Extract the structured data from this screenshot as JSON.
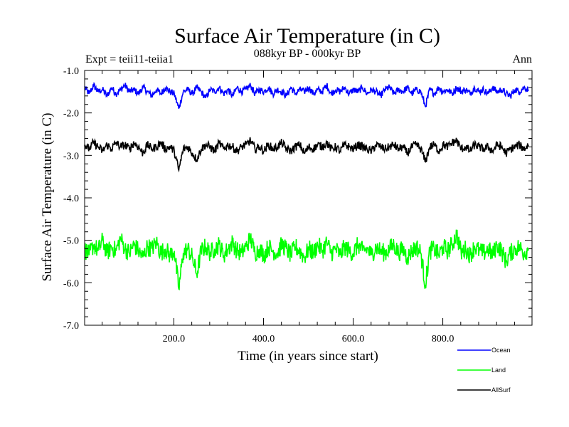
{
  "chart_data": {
    "type": "line",
    "title": "Surface Air Temperature (in C)",
    "subtitle": "088kyr BP - 000kyr BP",
    "experiment": "Expt = teii11-teiia1",
    "period": "Ann",
    "xlabel": "Time (in years since start)",
    "ylabel": "Surface Air Temperature (in C)",
    "xlim": [
      1,
      999
    ],
    "ylim": [
      -7.0,
      -1.0
    ],
    "xticks": [
      200,
      400,
      600,
      800
    ],
    "xtick_labels": [
      "200.0",
      "400.0",
      "600.0",
      "800.0"
    ],
    "yticks": [
      -1,
      -2,
      -3,
      -4,
      -5,
      -6,
      -7
    ],
    "ytick_labels": [
      "-1.0",
      "-2.0",
      "-3.0",
      "-4.0",
      "-5.0",
      "-6.0",
      "-7.0"
    ],
    "grid": false,
    "legend_position": "bottom-right, below plot",
    "series": [
      {
        "name": "Ocean",
        "color": "#0000ff",
        "x_step": 10,
        "x_start": 1,
        "values": [
          -1.4,
          -1.55,
          -1.35,
          -1.5,
          -1.45,
          -1.6,
          -1.4,
          -1.55,
          -1.45,
          -1.35,
          -1.5,
          -1.45,
          -1.55,
          -1.4,
          -1.5,
          -1.6,
          -1.45,
          -1.55,
          -1.4,
          -1.5,
          -1.55,
          -1.9,
          -1.5,
          -1.45,
          -1.55,
          -1.4,
          -1.5,
          -1.65,
          -1.45,
          -1.5,
          -1.4,
          -1.55,
          -1.45,
          -1.6,
          -1.4,
          -1.5,
          -1.45,
          -1.35,
          -1.55,
          -1.45,
          -1.5,
          -1.4,
          -1.55,
          -1.45,
          -1.5,
          -1.6,
          -1.4,
          -1.55,
          -1.45,
          -1.5,
          -1.4,
          -1.55,
          -1.45,
          -1.5,
          -1.35,
          -1.55,
          -1.45,
          -1.5,
          -1.4,
          -1.55,
          -1.45,
          -1.5,
          -1.4,
          -1.55,
          -1.45,
          -1.5,
          -1.6,
          -1.45,
          -1.4,
          -1.55,
          -1.45,
          -1.5,
          -1.4,
          -1.55,
          -1.45,
          -1.5,
          -1.85,
          -1.45,
          -1.55,
          -1.4,
          -1.5,
          -1.45,
          -1.55,
          -1.4,
          -1.5,
          -1.45,
          -1.55,
          -1.4,
          -1.5,
          -1.45,
          -1.55,
          -1.4,
          -1.5,
          -1.45,
          -1.55,
          -1.6,
          -1.45,
          -1.5,
          -1.4,
          -1.45
        ]
      },
      {
        "name": "Land",
        "color": "#00ff00",
        "x_step": 10,
        "x_start": 1,
        "values": [
          -5.2,
          -5.35,
          -5.1,
          -5.25,
          -5.0,
          -5.3,
          -5.15,
          -5.25,
          -4.95,
          -5.2,
          -5.3,
          -5.1,
          -5.25,
          -5.4,
          -5.15,
          -5.2,
          -5.05,
          -5.3,
          -5.2,
          -5.35,
          -5.25,
          -6.15,
          -5.3,
          -5.2,
          -5.4,
          -5.8,
          -5.25,
          -5.15,
          -5.3,
          -5.2,
          -5.1,
          -5.35,
          -5.2,
          -5.05,
          -5.25,
          -5.3,
          -5.15,
          -4.95,
          -5.3,
          -5.2,
          -5.35,
          -5.15,
          -5.25,
          -5.3,
          -5.1,
          -5.2,
          -5.35,
          -5.15,
          -5.25,
          -5.4,
          -5.2,
          -5.3,
          -5.1,
          -5.25,
          -5.05,
          -5.3,
          -5.2,
          -5.35,
          -5.15,
          -5.25,
          -5.3,
          -5.1,
          -5.25,
          -5.2,
          -5.35,
          -5.15,
          -5.25,
          -5.3,
          -5.2,
          -5.1,
          -5.3,
          -5.2,
          -5.4,
          -5.25,
          -5.15,
          -5.3,
          -6.05,
          -5.25,
          -5.2,
          -5.35,
          -5.15,
          -5.25,
          -5.1,
          -4.85,
          -5.3,
          -5.2,
          -5.35,
          -5.15,
          -5.25,
          -5.3,
          -5.2,
          -5.35,
          -5.1,
          -5.25,
          -5.5,
          -5.3,
          -5.2,
          -5.15,
          -5.3,
          -5.2
        ]
      },
      {
        "name": "AllSurf",
        "color": "#000000",
        "x_step": 10,
        "x_start": 1,
        "values": [
          -2.75,
          -2.85,
          -2.7,
          -2.8,
          -2.9,
          -2.75,
          -2.85,
          -2.7,
          -2.8,
          -2.75,
          -2.85,
          -2.7,
          -2.8,
          -2.95,
          -2.75,
          -2.85,
          -2.8,
          -2.7,
          -2.85,
          -2.8,
          -2.9,
          -3.35,
          -2.85,
          -2.8,
          -2.95,
          -3.1,
          -2.85,
          -2.75,
          -2.8,
          -2.9,
          -2.7,
          -2.85,
          -2.75,
          -2.8,
          -2.9,
          -2.8,
          -2.75,
          -2.65,
          -2.85,
          -2.8,
          -2.9,
          -2.75,
          -2.85,
          -2.8,
          -2.7,
          -2.85,
          -2.9,
          -2.8,
          -2.75,
          -2.95,
          -2.8,
          -2.85,
          -2.75,
          -2.8,
          -2.7,
          -2.85,
          -2.8,
          -2.9,
          -2.75,
          -2.8,
          -2.85,
          -2.75,
          -2.8,
          -2.85,
          -2.9,
          -2.75,
          -2.8,
          -2.85,
          -2.8,
          -2.75,
          -2.85,
          -2.8,
          -2.95,
          -2.8,
          -2.75,
          -2.85,
          -3.15,
          -2.8,
          -2.75,
          -2.9,
          -2.75,
          -2.8,
          -2.7,
          -2.65,
          -2.85,
          -2.8,
          -2.9,
          -2.75,
          -2.8,
          -2.85,
          -2.8,
          -2.9,
          -2.75,
          -2.8,
          -2.95,
          -2.85,
          -2.8,
          -2.75,
          -2.85,
          -2.75
        ]
      }
    ]
  }
}
